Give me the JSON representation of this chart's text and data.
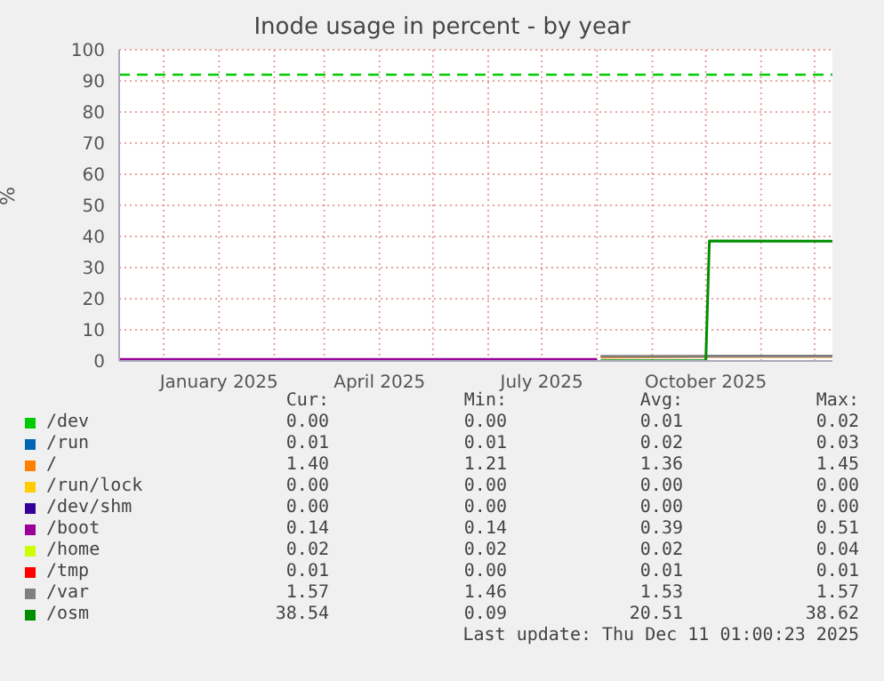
{
  "chart_data": {
    "type": "line",
    "title": "Inode usage in percent - by year",
    "ylabel": "%",
    "x": [
      "2024-11-06",
      "2025-08-01",
      "2025-08-03",
      "2025-10-01",
      "2025-10-03",
      "2025-12-11"
    ],
    "xlim": [
      "2024-11-06",
      "2025-12-11"
    ],
    "xticks": [
      {
        "value": "2024-12-01",
        "label": null
      },
      {
        "value": "2025-01-01",
        "label": "January 2025"
      },
      {
        "value": "2025-02-01",
        "label": null
      },
      {
        "value": "2025-03-01",
        "label": null
      },
      {
        "value": "2025-04-01",
        "label": "April 2025"
      },
      {
        "value": "2025-05-01",
        "label": null
      },
      {
        "value": "2025-06-01",
        "label": null
      },
      {
        "value": "2025-07-01",
        "label": "July 2025"
      },
      {
        "value": "2025-08-01",
        "label": null
      },
      {
        "value": "2025-09-01",
        "label": null
      },
      {
        "value": "2025-10-01",
        "label": "October 2025"
      },
      {
        "value": "2025-11-01",
        "label": null
      },
      {
        "value": "2025-12-01",
        "label": null
      }
    ],
    "ylim": [
      0,
      100
    ],
    "yticks": [
      0,
      10,
      20,
      30,
      40,
      50,
      60,
      70,
      80,
      90,
      100
    ],
    "grid": true,
    "legend": "bottom",
    "marker": "none",
    "line_style": "solid",
    "ref_lines": [
      {
        "axis": "y",
        "value": 92,
        "color": "#00cc00",
        "line_style": "dashed"
      }
    ],
    "series": [
      {
        "name": "/dev",
        "color": "#00cc00",
        "values": [
          null,
          null,
          null,
          null,
          null,
          null
        ]
      },
      {
        "name": "/run",
        "color": "#0066b3",
        "values": [
          null,
          null,
          null,
          null,
          null,
          null
        ]
      },
      {
        "name": "/",
        "color": "#ff8000",
        "values": [
          null,
          null,
          1.2,
          1.4,
          1.4,
          1.4
        ]
      },
      {
        "name": "/run/lock",
        "color": "#ffcc00",
        "values": [
          null,
          null,
          null,
          null,
          null,
          null
        ]
      },
      {
        "name": "/dev/shm",
        "color": "#330099",
        "values": [
          null,
          null,
          null,
          null,
          null,
          null
        ]
      },
      {
        "name": "/boot",
        "color": "#990099",
        "values": [
          0.5,
          0.5,
          null,
          null,
          null,
          null
        ]
      },
      {
        "name": "/home",
        "color": "#ccff00",
        "values": [
          null,
          null,
          null,
          null,
          null,
          null
        ]
      },
      {
        "name": "/tmp",
        "color": "#ff0000",
        "values": [
          null,
          null,
          null,
          null,
          null,
          null
        ]
      },
      {
        "name": "/var",
        "color": "#808080",
        "values": [
          null,
          null,
          1.5,
          1.5,
          1.6,
          1.6
        ]
      },
      {
        "name": "/osm",
        "color": "#008f00",
        "values": [
          null,
          null,
          0.1,
          0.1,
          38.6,
          38.5
        ]
      }
    ],
    "annotations": [
      "Cur:",
      "Min:",
      "Avg:",
      "Max:",
      "0.00",
      "0.00",
      "0.01",
      "0.02",
      "0.01",
      "0.01",
      "0.02",
      "0.03",
      "1.40",
      "1.21",
      "1.36",
      "1.45",
      "0.00",
      "0.00",
      "0.00",
      "0.00",
      "0.00",
      "0.00",
      "0.00",
      "0.00",
      "0.14",
      "0.14",
      "0.39",
      "0.51",
      "0.02",
      "0.02",
      "0.02",
      "0.04",
      "0.01",
      "0.00",
      "0.01",
      "0.01",
      "1.57",
      "1.46",
      "1.53",
      "1.57",
      "38.54",
      "0.09",
      "20.51",
      "38.62",
      "Last update: Thu Dec 11 01:00:23 2025"
    ]
  }
}
